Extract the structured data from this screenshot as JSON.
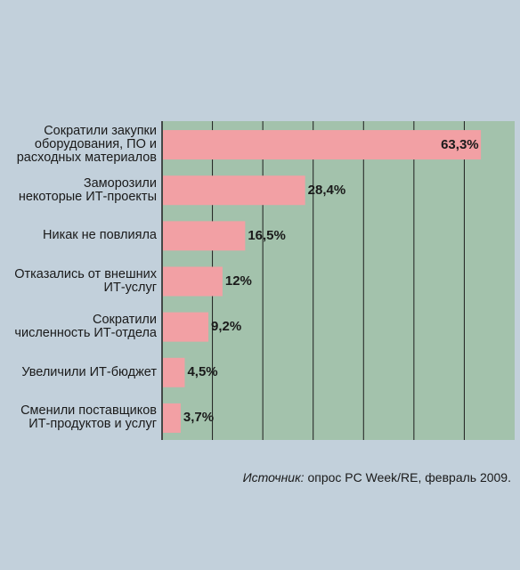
{
  "chart_data": {
    "type": "bar",
    "orientation": "horizontal",
    "categories": [
      "Сократили закупки\nоборудования, ПО и\nрасходных материалов",
      "Заморозили\nнекоторые ИТ-проекты",
      "Никак не повлияла",
      "Отказались от внешних\nИТ-услуг",
      "Сократили\nчисленность ИТ-отдела",
      "Увеличили ИТ-бюджет",
      "Сменили поставщиков\nИТ-продуктов и услуг"
    ],
    "values": [
      63.3,
      28.4,
      16.5,
      12,
      9.2,
      4.5,
      3.7
    ],
    "value_labels": [
      "63,3%",
      "28,4%",
      "16,5%",
      "12%",
      "9,2%",
      "4,5%",
      "3,7%"
    ],
    "xlim": [
      0,
      70
    ],
    "grid": true,
    "colors": {
      "background": "#c2d0db",
      "plot_area": "#a3c2ac",
      "bar": "#f2a0a4",
      "gridline": "#1e1e1e"
    }
  },
  "source": {
    "prefix": "Источник:",
    "text": " опрос PC Week/RE, февраль 2009."
  }
}
